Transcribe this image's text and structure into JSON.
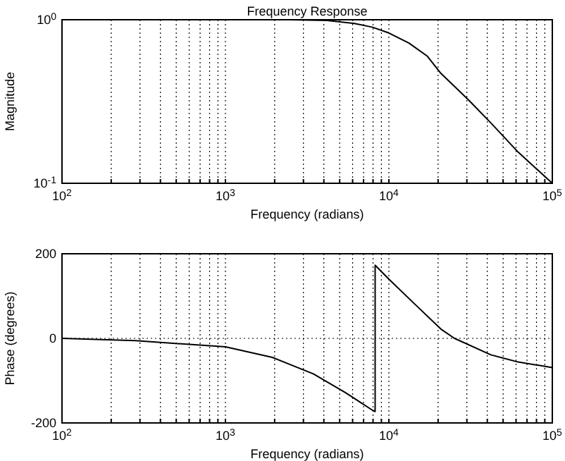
{
  "chart_data": [
    {
      "type": "line",
      "title": "Frequency Response",
      "xlabel": "Frequency (radians)",
      "ylabel": "Magnitude",
      "log": "xy",
      "grid": "x",
      "xlim": [
        100,
        100000
      ],
      "ylim": [
        0.1,
        1
      ],
      "xticks": [
        {
          "value": 100,
          "label": "10$^{2}$"
        },
        {
          "value": 200,
          "label": null
        },
        {
          "value": 300,
          "label": null
        },
        {
          "value": 400,
          "label": null
        },
        {
          "value": 500,
          "label": null
        },
        {
          "value": 600,
          "label": null
        },
        {
          "value": 700,
          "label": null
        },
        {
          "value": 800,
          "label": null
        },
        {
          "value": 900,
          "label": null
        },
        {
          "value": 1000,
          "label": "10$^{3}$"
        },
        {
          "value": 2000,
          "label": null
        },
        {
          "value": 3000,
          "label": null
        },
        {
          "value": 4000,
          "label": null
        },
        {
          "value": 5000,
          "label": null
        },
        {
          "value": 6000,
          "label": null
        },
        {
          "value": 7000,
          "label": null
        },
        {
          "value": 8000,
          "label": null
        },
        {
          "value": 9000,
          "label": null
        },
        {
          "value": 10000,
          "label": "10$^{4}$"
        },
        {
          "value": 20000,
          "label": null
        },
        {
          "value": 30000,
          "label": null
        },
        {
          "value": 40000,
          "label": null
        },
        {
          "value": 50000,
          "label": null
        },
        {
          "value": 60000,
          "label": null
        },
        {
          "value": 70000,
          "label": null
        },
        {
          "value": 80000,
          "label": null
        },
        {
          "value": 90000,
          "label": null
        },
        {
          "value": 100000,
          "label": "10$^{5}$"
        }
      ],
      "yticks": [
        {
          "value": 0.1,
          "label": "10$^{-1}$"
        },
        {
          "value": 1,
          "label": "10$^{0}$"
        }
      ],
      "series": [
        {
          "color": "#000000",
          "x": [
            2470,
            4180,
            6140,
            7940,
            10000,
            13270,
            17140,
            20800,
            30550,
            42070,
            61800,
            100000
          ],
          "values": [
            1.0,
            0.99,
            0.95,
            0.9,
            0.83,
            0.72,
            0.6,
            0.47,
            0.325,
            0.234,
            0.155,
            0.1
          ]
        }
      ]
    },
    {
      "type": "line",
      "xlabel": "Frequency (radians)",
      "ylabel": "Phase (degrees)",
      "log": "x",
      "grid": true,
      "xlim": [
        100,
        100000
      ],
      "ylim": [
        -200,
        200
      ],
      "xticks": [
        {
          "value": 100,
          "label": "10$^{2}$"
        },
        {
          "value": 200,
          "label": null
        },
        {
          "value": 300,
          "label": null
        },
        {
          "value": 400,
          "label": null
        },
        {
          "value": 500,
          "label": null
        },
        {
          "value": 600,
          "label": null
        },
        {
          "value": 700,
          "label": null
        },
        {
          "value": 800,
          "label": null
        },
        {
          "value": 900,
          "label": null
        },
        {
          "value": 1000,
          "label": "10$^{3}$"
        },
        {
          "value": 2000,
          "label": null
        },
        {
          "value": 3000,
          "label": null
        },
        {
          "value": 4000,
          "label": null
        },
        {
          "value": 5000,
          "label": null
        },
        {
          "value": 6000,
          "label": null
        },
        {
          "value": 7000,
          "label": null
        },
        {
          "value": 8000,
          "label": null
        },
        {
          "value": 9000,
          "label": null
        },
        {
          "value": 10000,
          "label": "10$^{4}$"
        },
        {
          "value": 20000,
          "label": null
        },
        {
          "value": 30000,
          "label": null
        },
        {
          "value": 40000,
          "label": null
        },
        {
          "value": 50000,
          "label": null
        },
        {
          "value": 60000,
          "label": null
        },
        {
          "value": 70000,
          "label": null
        },
        {
          "value": 80000,
          "label": null
        },
        {
          "value": 90000,
          "label": null
        },
        {
          "value": 100000,
          "label": "10$^{5}$"
        }
      ],
      "yticks": [
        -200,
        0,
        200
      ],
      "series": [
        {
          "color": "#000000",
          "x": [
            100,
            282,
            1000,
            1936,
            3450,
            5410,
            7940,
            8240,
            8240,
            10000,
            14140,
            20800,
            25200,
            42070,
            61800,
            100000
          ],
          "values": [
            0,
            -5.6,
            -20,
            -45,
            -84,
            -128,
            -170,
            -173,
            173,
            140,
            84,
            22,
            0,
            -39,
            -56,
            -69
          ]
        }
      ]
    }
  ]
}
